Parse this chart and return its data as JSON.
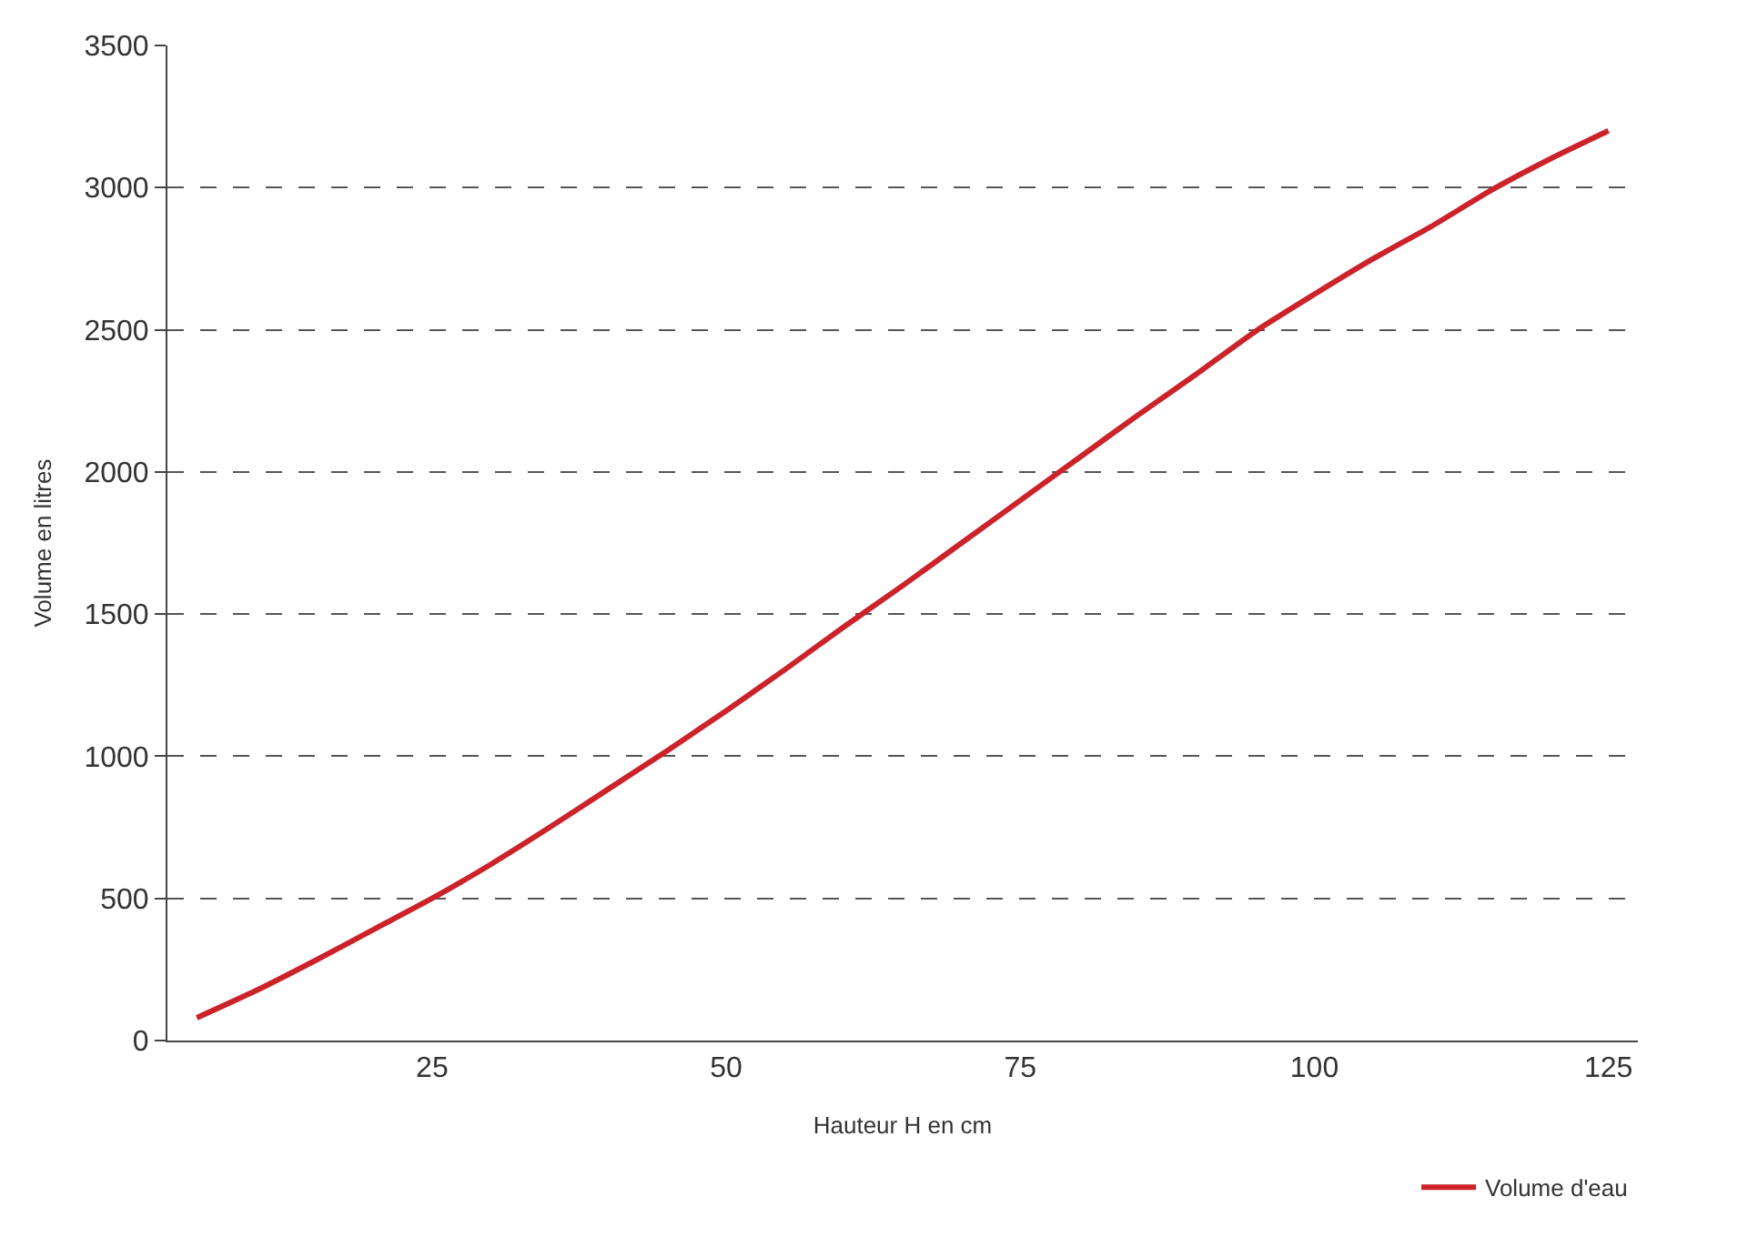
{
  "chart_data": {
    "type": "line",
    "xlabel": "Hauteur H en cm",
    "ylabel": "Volume en litres",
    "xlim": [
      2.5,
      127.5
    ],
    "xticks": [
      25,
      50,
      75,
      100,
      125
    ],
    "ylim": [
      0,
      3500
    ],
    "yticks": [
      0,
      500,
      1000,
      1500,
      2000,
      2500,
      3000,
      3500
    ],
    "grid": "y",
    "legend": "bottom right",
    "line_style": "solid",
    "x": [
      5,
      10,
      15,
      20,
      25,
      30,
      35,
      40,
      45,
      50,
      55,
      60,
      65,
      70,
      75,
      80,
      85,
      90,
      95,
      100,
      105,
      110,
      115,
      120,
      125
    ],
    "series": [
      {
        "name": "Volume d'eau",
        "color": "#cc2229",
        "values": [
          80,
          175,
          280,
          390,
          500,
          620,
          750,
          885,
          1020,
          1160,
          1305,
          1455,
          1600,
          1750,
          1900,
          2050,
          2200,
          2345,
          2495,
          2625,
          2750,
          2865,
          2990,
          3100,
          3200
        ]
      }
    ]
  }
}
